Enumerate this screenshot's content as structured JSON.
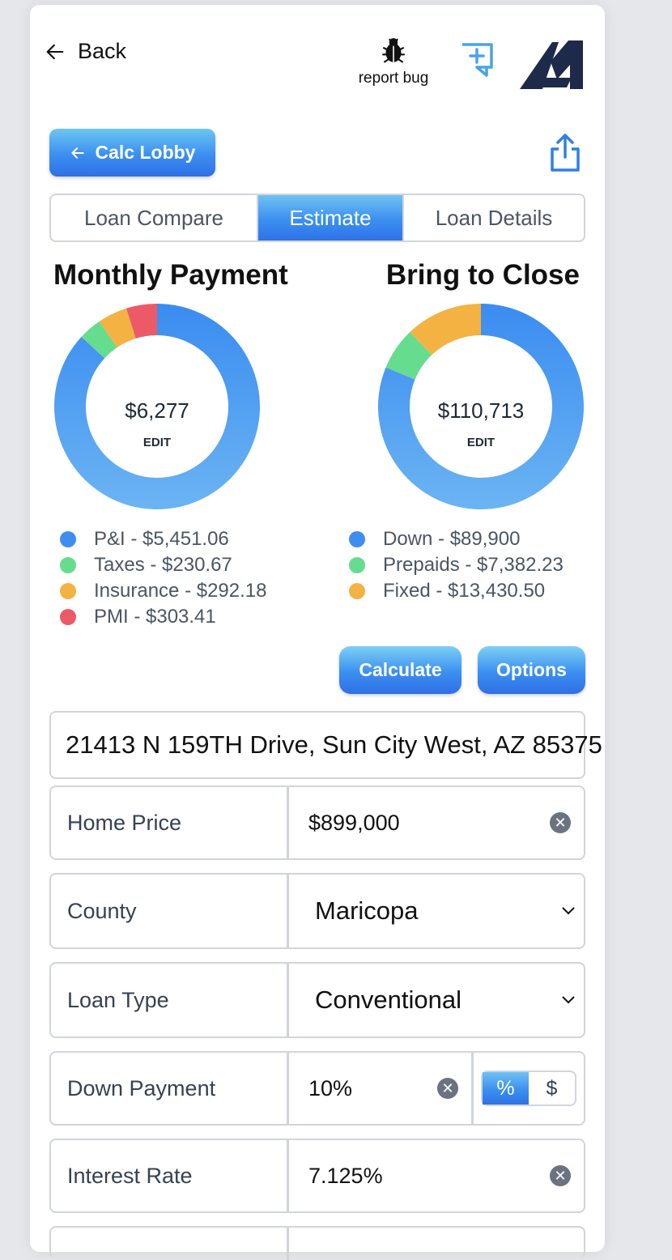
{
  "header": {
    "back_label": "Back",
    "bug_label": "report bug"
  },
  "nav": {
    "lobby_label": "Calc Lobby"
  },
  "tabs": [
    {
      "label": "Loan Compare",
      "active": false
    },
    {
      "label": "Estimate",
      "active": true
    },
    {
      "label": "Loan Details",
      "active": false
    }
  ],
  "monthly": {
    "title": "Monthly Payment",
    "total": "$6,277",
    "edit": "EDIT",
    "items": [
      {
        "label": "P&I - $5,451.06",
        "value": 5451.06,
        "color": "#3d8ef0"
      },
      {
        "label": "Taxes - $230.67",
        "value": 230.67,
        "color": "#66dc8f"
      },
      {
        "label": "Insurance - $292.18",
        "value": 292.18,
        "color": "#f3b242"
      },
      {
        "label": "PMI - $303.41",
        "value": 303.41,
        "color": "#ec5a68"
      }
    ]
  },
  "close": {
    "title": "Bring to Close",
    "total": "$110,713",
    "edit": "EDIT",
    "items": [
      {
        "label": "Down - $89,900",
        "value": 89900,
        "color": "#3d8ef0"
      },
      {
        "label": "Prepaids - $7,382.23",
        "value": 7382.23,
        "color": "#66dc8f"
      },
      {
        "label": "Fixed - $13,430.50",
        "value": 13430.5,
        "color": "#f3b242"
      }
    ]
  },
  "actions": {
    "calculate": "Calculate",
    "options": "Options"
  },
  "address": "21413 N 159TH Drive, Sun City West, AZ 85375",
  "form": {
    "home_price": {
      "label": "Home Price",
      "value": "$899,000"
    },
    "county": {
      "label": "County",
      "value": "Maricopa"
    },
    "loan_type": {
      "label": "Loan Type",
      "value": "Conventional"
    },
    "down_payment": {
      "label": "Down Payment",
      "value": "10%",
      "percent": "%",
      "dollar": "$"
    },
    "interest_rate": {
      "label": "Interest Rate",
      "value": "7.125%"
    }
  },
  "icons": {
    "back": "arrow-left-icon",
    "bug": "bug-icon",
    "add_note": "add-note-icon",
    "share": "share-icon",
    "clear": "clear-icon",
    "chevron": "chevron-down-icon"
  }
}
